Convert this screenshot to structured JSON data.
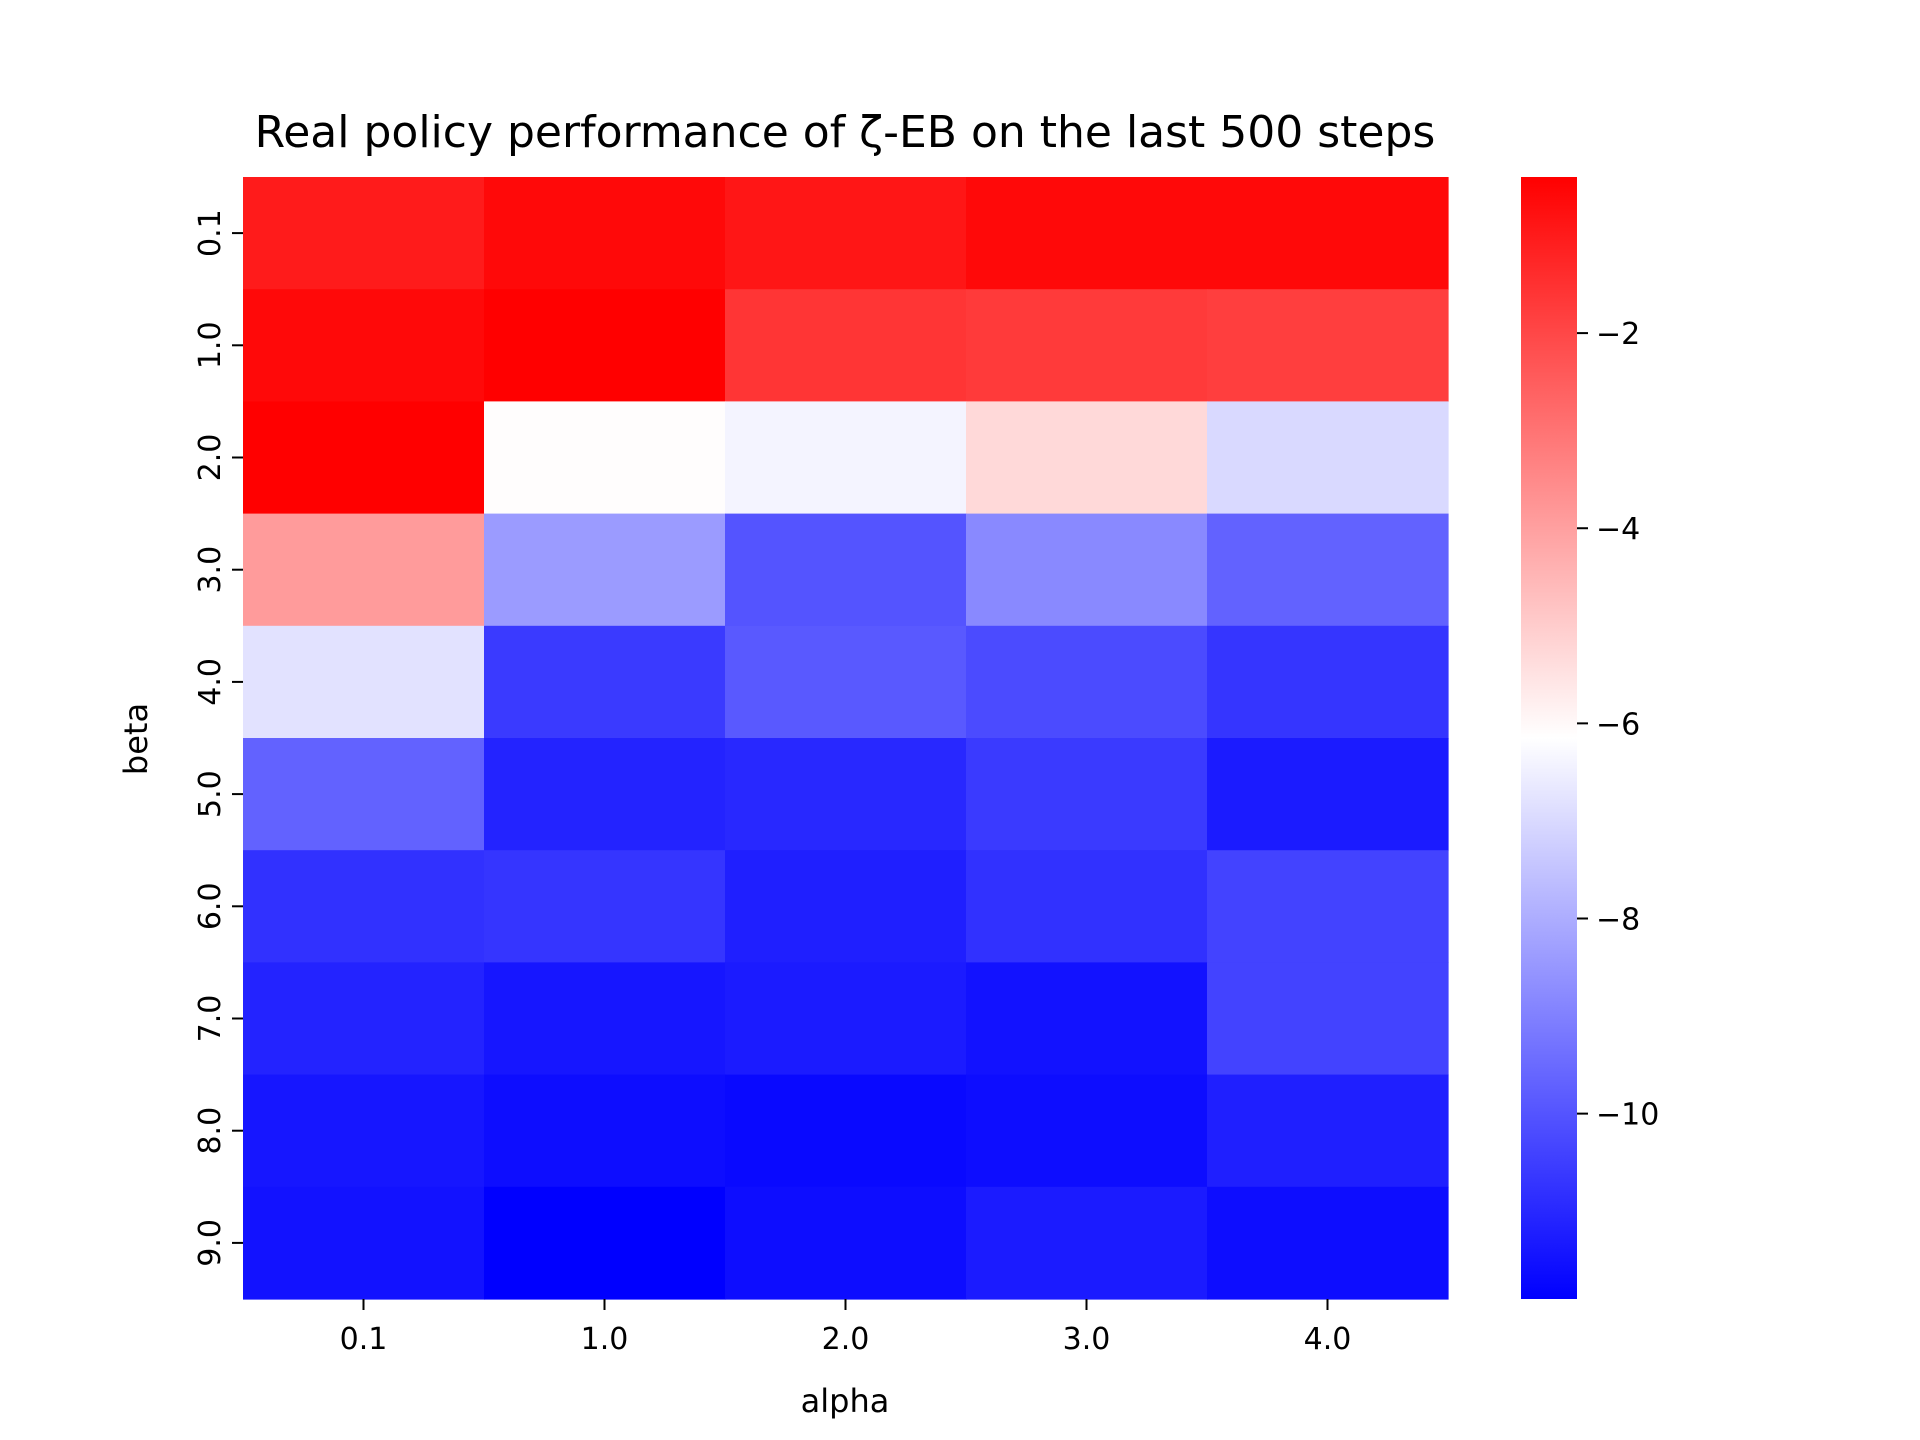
{
  "chart_data": {
    "type": "heatmap",
    "title": "Real policy performance of ζ-EB on the last 500 steps",
    "xlabel": "alpha",
    "ylabel": "beta",
    "x_categories": [
      "0.1",
      "1.0",
      "2.0",
      "3.0",
      "4.0"
    ],
    "y_categories": [
      "0.1",
      "1.0",
      "2.0",
      "3.0",
      "4.0",
      "5.0",
      "6.0",
      "7.0",
      "8.0",
      "9.0"
    ],
    "values": [
      [
        -1.0,
        -0.6,
        -0.9,
        -0.6,
        -0.6
      ],
      [
        -0.6,
        -0.4,
        -1.6,
        -1.7,
        -1.8
      ],
      [
        -0.4,
        -6.1,
        -6.4,
        -5.3,
        -7.0
      ],
      [
        -3.9,
        -8.4,
        -10.0,
        -8.8,
        -9.7
      ],
      [
        -6.8,
        -10.6,
        -9.9,
        -10.2,
        -10.7
      ],
      [
        -9.7,
        -11.1,
        -11.0,
        -10.6,
        -11.3
      ],
      [
        -10.8,
        -10.7,
        -11.2,
        -10.8,
        -10.4
      ],
      [
        -11.1,
        -11.4,
        -11.3,
        -11.5,
        -10.4
      ],
      [
        -11.4,
        -11.6,
        -11.7,
        -11.6,
        -11.2
      ],
      [
        -11.5,
        -11.9,
        -11.6,
        -11.3,
        -11.6
      ]
    ],
    "zlim": [
      -11.9,
      -0.4
    ],
    "colormap": {
      "low": "#0000ff",
      "mid": "#ffffff",
      "high": "#ff0000"
    },
    "colorbar": {
      "ticks": [
        -2,
        -4,
        -6,
        -8,
        -10
      ],
      "tick_labels": [
        "−2",
        "−4",
        "−6",
        "−8",
        "−10"
      ]
    }
  }
}
